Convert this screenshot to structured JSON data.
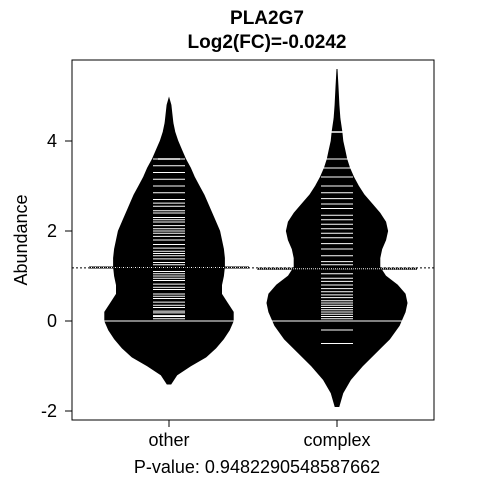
{
  "chart_data": {
    "type": "beanplot",
    "title": "PLA2G7",
    "subtitle": "Log2(FC)=-0.0242",
    "ylabel": "Abundance",
    "xlabel": "P-value: 0.9482290548587662",
    "ylim": [
      -2.2,
      5.8
    ],
    "yticks": [
      -2,
      0,
      2,
      4
    ],
    "ytick_labels": [
      "-2",
      "0",
      "2",
      "4"
    ],
    "categories": [
      "other",
      "complex"
    ],
    "overall_mean": 1.18,
    "series": [
      {
        "name": "other",
        "mean": 1.19,
        "max": 3.6,
        "min": -1.4,
        "top": 4.95,
        "density": [
          [
            -1.4,
            2
          ],
          [
            -1.2,
            8
          ],
          [
            -1.0,
            22
          ],
          [
            -0.8,
            38
          ],
          [
            -0.6,
            48
          ],
          [
            -0.4,
            56
          ],
          [
            -0.2,
            62
          ],
          [
            0.0,
            66
          ],
          [
            0.2,
            66
          ],
          [
            0.4,
            60
          ],
          [
            0.6,
            54
          ],
          [
            0.8,
            54
          ],
          [
            1.0,
            56
          ],
          [
            1.2,
            57
          ],
          [
            1.4,
            57
          ],
          [
            1.6,
            56
          ],
          [
            1.8,
            54
          ],
          [
            2.0,
            52
          ],
          [
            2.2,
            48
          ],
          [
            2.4,
            44
          ],
          [
            2.6,
            40
          ],
          [
            2.8,
            36
          ],
          [
            3.0,
            31
          ],
          [
            3.2,
            26
          ],
          [
            3.4,
            22
          ],
          [
            3.6,
            17
          ],
          [
            3.8,
            13
          ],
          [
            4.0,
            9
          ],
          [
            4.2,
            6
          ],
          [
            4.4,
            4
          ],
          [
            4.6,
            3
          ],
          [
            4.8,
            2
          ],
          [
            4.95,
            0
          ]
        ],
        "observations": [
          0.0,
          0.05,
          0.1,
          0.12,
          0.18,
          0.22,
          0.3,
          0.35,
          0.42,
          0.5,
          0.55,
          0.6,
          0.7,
          0.75,
          0.82,
          0.9,
          0.95,
          1.0,
          1.05,
          1.1,
          1.2,
          1.25,
          1.3,
          1.38,
          1.45,
          1.5,
          1.55,
          1.62,
          1.7,
          1.8,
          1.88,
          1.95,
          2.0,
          2.05,
          2.12,
          2.2,
          2.25,
          2.3,
          2.4,
          2.45,
          2.55,
          2.62,
          2.7,
          2.85,
          3.0,
          3.15,
          3.3,
          3.45,
          3.6
        ]
      },
      {
        "name": "complex",
        "mean": 1.16,
        "max": 4.2,
        "min": -1.9,
        "top": 5.6,
        "density": [
          [
            -1.9,
            2
          ],
          [
            -1.6,
            6
          ],
          [
            -1.3,
            14
          ],
          [
            -1.0,
            26
          ],
          [
            -0.7,
            40
          ],
          [
            -0.4,
            54
          ],
          [
            -0.1,
            64
          ],
          [
            0.2,
            70
          ],
          [
            0.4,
            72
          ],
          [
            0.6,
            70
          ],
          [
            0.8,
            62
          ],
          [
            1.0,
            50
          ],
          [
            1.2,
            44
          ],
          [
            1.4,
            44
          ],
          [
            1.6,
            46
          ],
          [
            1.8,
            50
          ],
          [
            2.0,
            52
          ],
          [
            2.2,
            50
          ],
          [
            2.4,
            44
          ],
          [
            2.6,
            36
          ],
          [
            2.8,
            28
          ],
          [
            3.0,
            22
          ],
          [
            3.2,
            17
          ],
          [
            3.4,
            13
          ],
          [
            3.6,
            10
          ],
          [
            3.8,
            8
          ],
          [
            4.0,
            6
          ],
          [
            4.2,
            5
          ],
          [
            4.5,
            3
          ],
          [
            4.8,
            2
          ],
          [
            5.2,
            1
          ],
          [
            5.6,
            0
          ]
        ],
        "observations": [
          -0.5,
          -0.2,
          0.05,
          0.1,
          0.15,
          0.2,
          0.25,
          0.3,
          0.35,
          0.4,
          0.45,
          0.52,
          0.58,
          0.65,
          0.72,
          0.8,
          0.88,
          0.95,
          1.05,
          1.15,
          1.25,
          1.32,
          1.45,
          1.6,
          1.72,
          1.85,
          1.95,
          2.05,
          2.15,
          2.25,
          2.35,
          2.5,
          2.6,
          2.72,
          2.85,
          3.0,
          3.2,
          3.4,
          3.6,
          4.2
        ]
      }
    ]
  }
}
